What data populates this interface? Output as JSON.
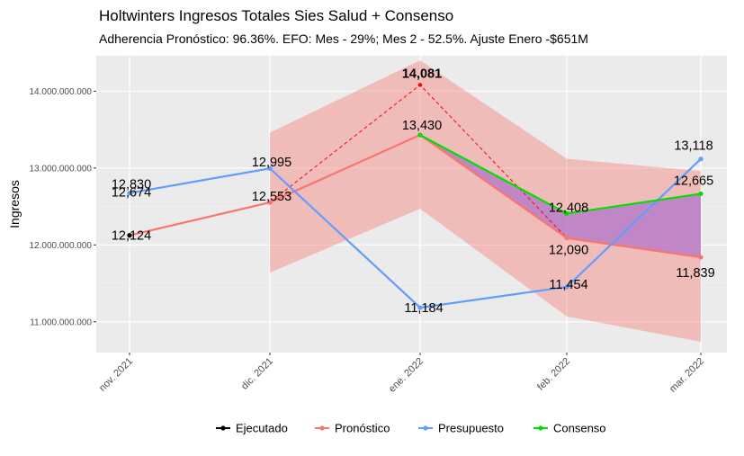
{
  "chart_data": {
    "type": "line",
    "title": "Holtwinters Ingresos Totales Sies Salud + Consenso",
    "subtitle": "Adherencia Pronóstico: 96.36%. EFO: Mes  - 29%; Mes 2 - 52.5%. Ajuste Enero -$651M",
    "xlabel": "",
    "ylabel": "Ingresos",
    "categories": [
      "nov. 2021",
      "dic. 2021",
      "ene. 2022",
      "feb. 2022",
      "mar. 2022"
    ],
    "y_ticks": [
      11000000000,
      12000000000,
      13000000000,
      14000000000
    ],
    "y_tick_labels": [
      "11.000.000.000",
      "12.000.000.000",
      "13.000.000.000",
      "14.000.000.000"
    ],
    "ylim": [
      10600000000,
      14460000000
    ],
    "grid": true,
    "legend_position": "bottom",
    "series": [
      {
        "name": "Ejecutado",
        "color": "#000000",
        "values": [
          12124000000,
          null,
          null,
          null,
          null
        ],
        "labels": [
          "12,124",
          "",
          "",
          "",
          ""
        ]
      },
      {
        "name": "Pronóstico",
        "color": "#F8766D",
        "values": [
          12124000000,
          12553000000,
          13430000000,
          12090000000,
          11839000000
        ],
        "labels": [
          "",
          "12,553",
          "",
          "12,090",
          "11,839"
        ]
      },
      {
        "name": "Presupuesto",
        "color": "#619CFF",
        "values": [
          12674000000,
          12995000000,
          11184000000,
          11454000000,
          13118000000
        ],
        "labels": [
          "12,674",
          "12,995",
          "11,184",
          "11,454",
          "13,118"
        ]
      },
      {
        "name": "Consenso",
        "color": "#00E000",
        "values": [
          null,
          null,
          13430000000,
          12408000000,
          12665000000
        ],
        "labels": [
          "",
          "",
          "13,430",
          "12,408",
          "12,665"
        ]
      }
    ],
    "annotations": [
      {
        "text": "12,830",
        "x": "nov. 2021",
        "y": 12830000000
      },
      {
        "text": "14,081",
        "x": "ene. 2022",
        "y": 14081000000,
        "color": "#FF0000",
        "bold": true
      }
    ],
    "dashed_adjustment_line": {
      "color": "#FF0000",
      "points": [
        {
          "x": "dic. 2021",
          "y": 12553000000
        },
        {
          "x": "ene. 2022",
          "y": 14081000000
        },
        {
          "x": "feb. 2022",
          "y": 12090000000
        }
      ]
    },
    "confidence_band": {
      "color": "#F8766D",
      "x_from": "dic. 2021",
      "upper": [
        null,
        13460000000,
        14400000000,
        13120000000,
        12960000000
      ],
      "lower": [
        null,
        11640000000,
        12470000000,
        11070000000,
        10740000000
      ]
    },
    "gap_fill": {
      "color": "#9B59D0",
      "between": [
        "Pronóstico",
        "Consenso"
      ],
      "x_from": "ene. 2022"
    }
  }
}
